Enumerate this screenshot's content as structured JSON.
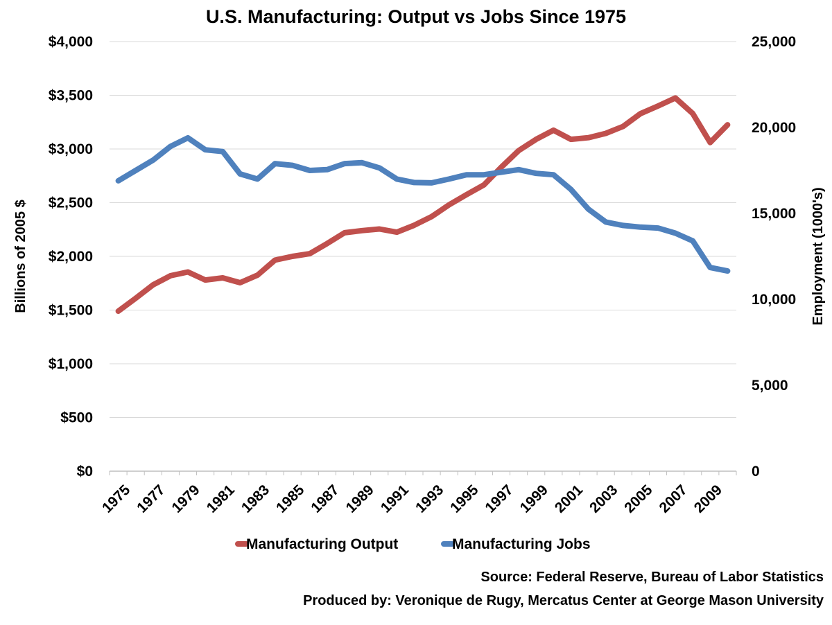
{
  "chart_data": {
    "type": "line",
    "title": "U.S. Manufacturing: Output vs Jobs Since 1975",
    "x": [
      1975,
      1976,
      1977,
      1978,
      1979,
      1980,
      1981,
      1982,
      1983,
      1984,
      1985,
      1986,
      1987,
      1988,
      1989,
      1990,
      1991,
      1992,
      1993,
      1994,
      1995,
      1996,
      1997,
      1998,
      1999,
      2000,
      2001,
      2002,
      2003,
      2004,
      2005,
      2006,
      2007,
      2008,
      2009,
      2010
    ],
    "x_tick_labels": [
      "1975",
      "1977",
      "1979",
      "1981",
      "1983",
      "1985",
      "1987",
      "1989",
      "1991",
      "1993",
      "1995",
      "1997",
      "1999",
      "2001",
      "2003",
      "2005",
      "2007",
      "2009"
    ],
    "ylabel": "Billions of 2005 $",
    "ylim": [
      0,
      4000
    ],
    "y_tick_labels": [
      "$0",
      "$500",
      "$1,000",
      "$1,500",
      "$2,000",
      "$2,500",
      "$3,000",
      "$3,500",
      "$4,000"
    ],
    "y2label": "Employment (1000's)",
    "y2lim": [
      0,
      25000
    ],
    "y2_tick_labels": [
      "0",
      "5,000",
      "10,000",
      "15,000",
      "20,000",
      "25,000"
    ],
    "grid": true,
    "legend_position": "bottom",
    "series": [
      {
        "name": "Manufacturing Output",
        "axis": "left",
        "color": "#c0504d",
        "values": [
          1490,
          1610,
          1735,
          1820,
          1855,
          1780,
          1800,
          1755,
          1825,
          1965,
          2000,
          2025,
          2120,
          2220,
          2240,
          2255,
          2225,
          2290,
          2370,
          2480,
          2575,
          2665,
          2830,
          2985,
          3090,
          3175,
          3090,
          3105,
          3145,
          3210,
          3330,
          3400,
          3475,
          3330,
          3060,
          3225
        ]
      },
      {
        "name": "Manufacturing Jobs",
        "axis": "right",
        "color": "#4f81bd",
        "values": [
          16900,
          17500,
          18100,
          18900,
          19400,
          18700,
          18600,
          17300,
          17000,
          17900,
          17800,
          17500,
          17550,
          17900,
          17950,
          17650,
          17000,
          16800,
          16780,
          17000,
          17250,
          17250,
          17400,
          17550,
          17330,
          17250,
          16400,
          15250,
          14500,
          14300,
          14200,
          14150,
          13850,
          13400,
          11850,
          11650
        ]
      }
    ]
  },
  "source_text": "Source: Federal Reserve, Bureau of Labor Statistics",
  "produced_text": "Produced by: Veronique de Rugy, Mercatus Center at George Mason University"
}
